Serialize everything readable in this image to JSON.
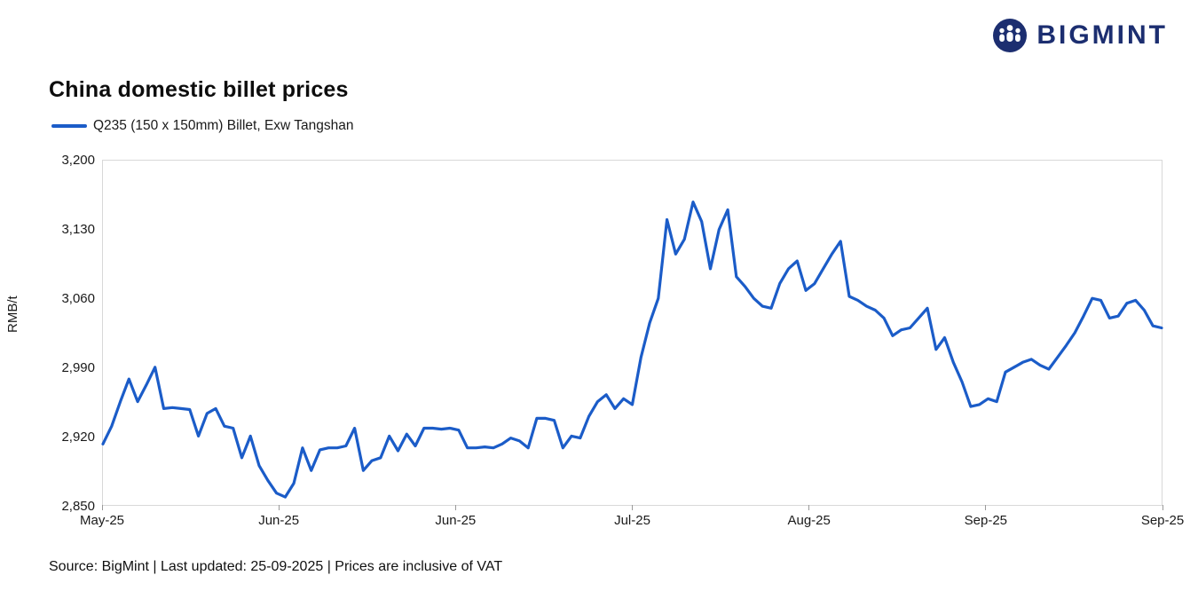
{
  "header": {
    "logo_text": "BIGMINT"
  },
  "title": "China domestic billet prices",
  "legend": {
    "label": "Q235 (150 x 150mm) Billet, Exw Tangshan"
  },
  "footer": "Source: BigMint | Last updated: 25-09-2025 | Prices are inclusive of VAT",
  "colors": {
    "line": "#1b5cc8",
    "logo": "#1c2e70",
    "axis_text": "#1a1a1a",
    "plot_border": "#d8d8d8"
  },
  "chart_data": {
    "type": "line",
    "title": "China domestic billet prices",
    "series_name": "Q235 (150 x 150mm) Billet, Exw Tangshan",
    "xlabel": "",
    "ylabel": "RMB/t",
    "ylim": [
      2850,
      3200
    ],
    "yticks": [
      2850,
      2920,
      2990,
      3060,
      3130,
      3200
    ],
    "ytick_labels": [
      "2,850",
      "2,920",
      "2,990",
      "3,060",
      "3,130",
      "3,200"
    ],
    "x_tick_labels": [
      "May-25",
      "Jun-25",
      "Jun-25",
      "Jul-25",
      "Aug-25",
      "Sep-25",
      "Sep-25"
    ],
    "grid": false,
    "legend_position": "top-left",
    "values": [
      2912,
      2930,
      2955,
      2978,
      2955,
      2972,
      2990,
      2948,
      2949,
      2948,
      2947,
      2920,
      2943,
      2948,
      2930,
      2928,
      2898,
      2920,
      2890,
      2875,
      2862,
      2858,
      2872,
      2908,
      2885,
      2906,
      2908,
      2908,
      2910,
      2928,
      2885,
      2895,
      2898,
      2920,
      2905,
      2922,
      2910,
      2928,
      2928,
      2927,
      2928,
      2926,
      2908,
      2908,
      2909,
      2908,
      2912,
      2918,
      2915,
      2908,
      2938,
      2938,
      2936,
      2908,
      2920,
      2918,
      2940,
      2955,
      2962,
      2948,
      2958,
      2952,
      3000,
      3035,
      3060,
      3140,
      3105,
      3120,
      3158,
      3138,
      3090,
      3130,
      3150,
      3082,
      3072,
      3060,
      3052,
      3050,
      3075,
      3090,
      3098,
      3068,
      3075,
      3090,
      3105,
      3118,
      3062,
      3058,
      3052,
      3048,
      3040,
      3022,
      3028,
      3030,
      3040,
      3050,
      3008,
      3020,
      2995,
      2975,
      2950,
      2952,
      2958,
      2955,
      2985,
      2990,
      2995,
      2998,
      2992,
      2988,
      3000,
      3012,
      3025,
      3042,
      3060,
      3058,
      3040,
      3042,
      3055,
      3058,
      3048,
      3032,
      3030
    ]
  }
}
